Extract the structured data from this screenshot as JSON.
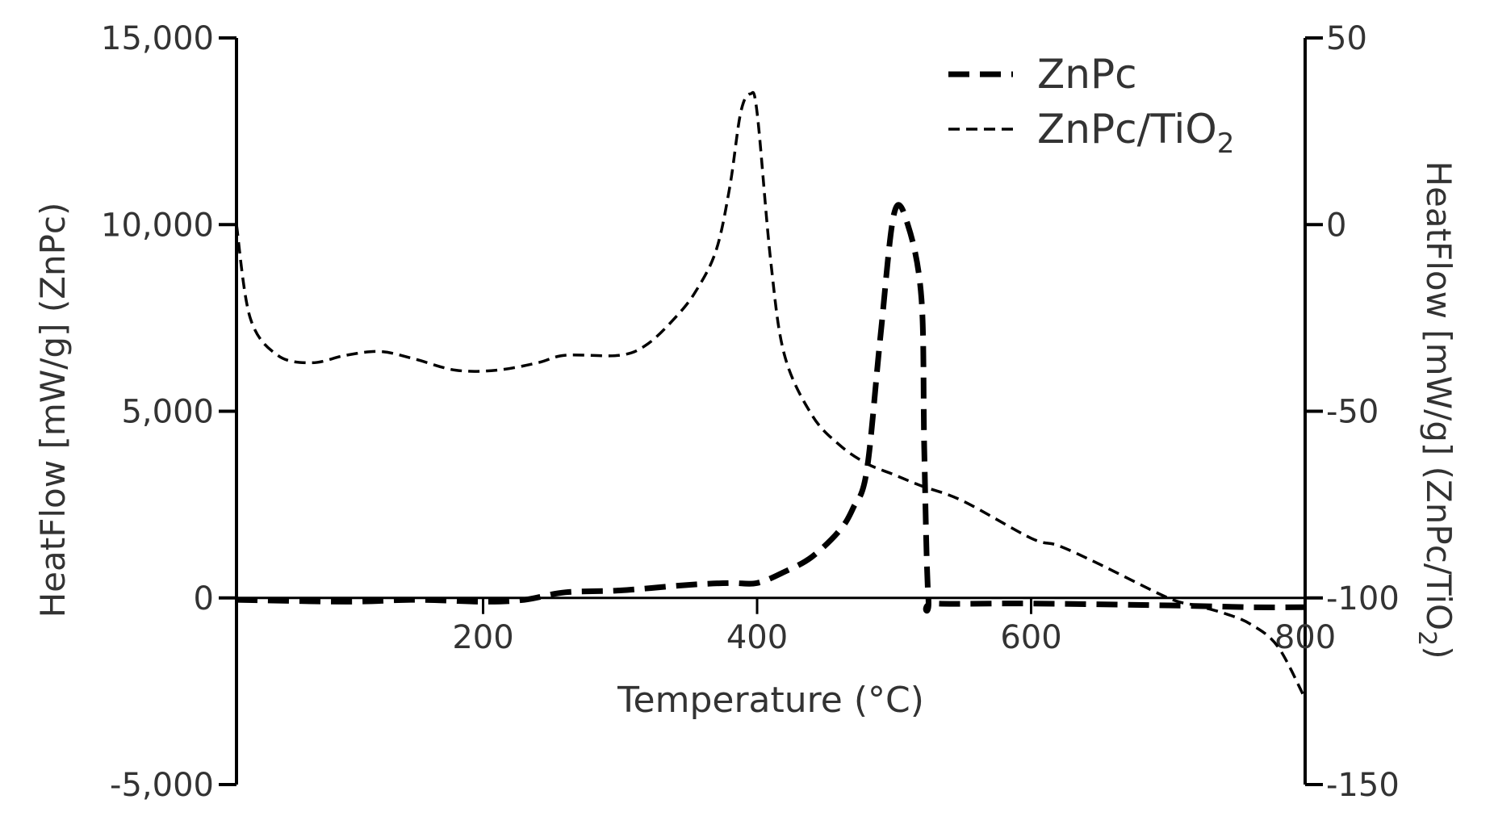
{
  "chart_data": {
    "type": "line",
    "xlabel": "Temperature (°C)",
    "ylabel_left": "HeatFlow [mW/g] (ZnPc)",
    "ylabel_right_parts": [
      "HeatFlow [mW/g] (ZnPc/TiO",
      "2",
      ")"
    ],
    "xlim": [
      20,
      800
    ],
    "ylim_left": [
      -5000,
      15000
    ],
    "ylim_right": [
      -150,
      50
    ],
    "x_ticks": [
      200,
      400,
      600,
      800
    ],
    "x_tick_labels": [
      "200",
      "400",
      "600",
      "800"
    ],
    "y_left_ticks": [
      -5000,
      0,
      5000,
      10000,
      15000
    ],
    "y_left_tick_labels": [
      "-5,000",
      "0",
      "5,000",
      "10,000",
      "15,000"
    ],
    "y_right_ticks": [
      -150,
      -100,
      -50,
      0,
      50
    ],
    "y_right_tick_labels": [
      "-150",
      "-100",
      "-50",
      "0",
      "50"
    ],
    "grid": false,
    "legend_position": "top-right",
    "legend": [
      {
        "label_parts": [
          "ZnPc",
          "",
          ""
        ],
        "line_style": "thick-dashed"
      },
      {
        "label_parts": [
          "ZnPc/TiO",
          "2",
          ""
        ],
        "line_style": "thin-dashed"
      }
    ],
    "series": [
      {
        "name": "ZnPc",
        "axis": "left",
        "color": "#000000",
        "x": [
          20,
          100,
          150,
          200,
          230,
          260,
          300,
          350,
          380,
          400,
          420,
          440,
          460,
          470,
          480,
          490,
          500,
          510,
          520,
          522,
          525,
          530,
          600,
          700,
          760,
          800
        ],
        "y": [
          -50,
          -100,
          -50,
          -100,
          -50,
          150,
          200,
          350,
          400,
          400,
          700,
          1100,
          1800,
          2400,
          3400,
          7000,
          10300,
          10000,
          8000,
          4000,
          0,
          -150,
          -150,
          -200,
          -250,
          -250
        ]
      },
      {
        "name": "ZnPc/TiO2",
        "axis": "right",
        "color": "#000000",
        "x": [
          20,
          30,
          50,
          75,
          100,
          125,
          150,
          180,
          210,
          240,
          260,
          300,
          320,
          340,
          355,
          370,
          380,
          388,
          395,
          400,
          410,
          420,
          440,
          460,
          480,
          500,
          520,
          550,
          600,
          620,
          650,
          700,
          720,
          740,
          760,
          780,
          800
        ],
        "y": [
          0,
          -25,
          -35,
          -37,
          -35,
          -34,
          -36,
          -39,
          -39,
          -37,
          -35,
          -35,
          -32,
          -25,
          -18,
          -7,
          10,
          30,
          35,
          30,
          -10,
          -35,
          -51,
          -59,
          -64,
          -67,
          -70,
          -74,
          -84,
          -86,
          -91,
          -100,
          -102,
          -104,
          -107,
          -113,
          -127
        ]
      }
    ]
  }
}
